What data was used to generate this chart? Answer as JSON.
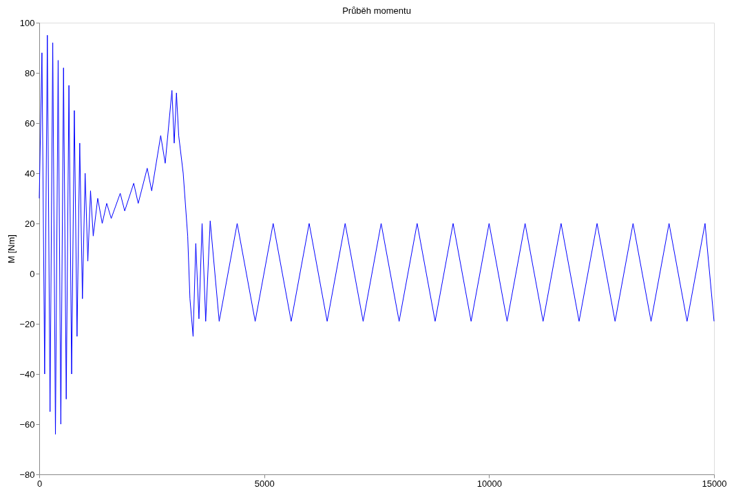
{
  "chart_data": {
    "type": "line",
    "title": "Průběh momentu",
    "ylabel": "M [Nm]",
    "x": [
      0,
      60,
      120,
      180,
      240,
      300,
      360,
      420,
      480,
      540,
      600,
      660,
      720,
      780,
      840,
      900,
      960,
      1020,
      1080,
      1140,
      1200,
      1300,
      1400,
      1500,
      1600,
      1800,
      1900,
      2100,
      2200,
      2400,
      2500,
      2700,
      2800,
      2950,
      3000,
      3050,
      3100,
      3200,
      3300,
      3350,
      3420,
      3480,
      3550,
      3620,
      3700,
      3800,
      4000,
      4400,
      4800,
      5200,
      5600,
      6000,
      6400,
      6800,
      7200,
      7600,
      8000,
      8400,
      8800,
      9200,
      9600,
      10000,
      10400,
      10800,
      11200,
      11600,
      12000,
      12400,
      12800,
      13200,
      13600,
      14000,
      14400,
      14800,
      15000
    ],
    "values": [
      30,
      88,
      -40,
      95,
      -55,
      92,
      -64,
      85,
      -60,
      82,
      -50,
      75,
      -40,
      65,
      -25,
      52,
      -10,
      40,
      5,
      33,
      15,
      30,
      20,
      28,
      22,
      32,
      25,
      36,
      28,
      42,
      33,
      55,
      44,
      73,
      52,
      72,
      55,
      40,
      15,
      -10,
      -25,
      12,
      -18,
      20,
      -19,
      21,
      -19,
      20,
      -19,
      20,
      -19,
      20,
      -19,
      20,
      -19,
      20,
      -19,
      20,
      -19,
      20,
      -19,
      20,
      -19,
      20,
      -19,
      20,
      -19,
      20,
      -19,
      20,
      -19,
      20,
      -19,
      20,
      -19
    ],
    "color": "#0000ff",
    "xlim": [
      0,
      15000
    ],
    "ylim": [
      -80,
      100
    ],
    "xticks": [
      0,
      5000,
      10000,
      15000
    ],
    "yticks": [
      -80,
      -60,
      -40,
      -20,
      0,
      20,
      40,
      60,
      80,
      100
    ],
    "grid": false
  }
}
